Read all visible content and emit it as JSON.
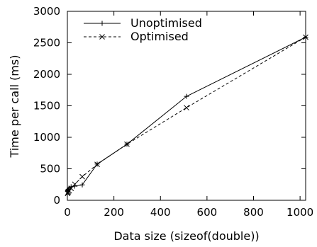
{
  "chart_data": {
    "type": "line",
    "title": "",
    "xlabel": "Data size (sizeof(double))",
    "ylabel": "Time per call (ms)",
    "xlim": [
      0,
      1024
    ],
    "ylim": [
      0,
      3000
    ],
    "xticks": [
      0,
      200,
      400,
      600,
      800,
      1000
    ],
    "yticks": [
      0,
      500,
      1000,
      1500,
      2000,
      2500,
      3000
    ],
    "grid": false,
    "legend_position": "top-left",
    "series": [
      {
        "name": "Unoptimised",
        "style": "solid",
        "marker": "plus",
        "color": "#000000",
        "x": [
          1,
          2,
          4,
          8,
          16,
          32,
          64,
          128,
          256,
          512,
          1024
        ],
        "y": [
          150,
          160,
          175,
          190,
          215,
          225,
          245,
          575,
          890,
          1650,
          2590
        ]
      },
      {
        "name": "Optimised",
        "style": "dashed",
        "marker": "cross",
        "color": "#000000",
        "x": [
          1,
          2,
          4,
          8,
          16,
          32,
          64,
          128,
          256,
          512,
          1024
        ],
        "y": [
          110,
          120,
          135,
          150,
          190,
          255,
          375,
          570,
          890,
          1470,
          2590
        ]
      }
    ]
  }
}
